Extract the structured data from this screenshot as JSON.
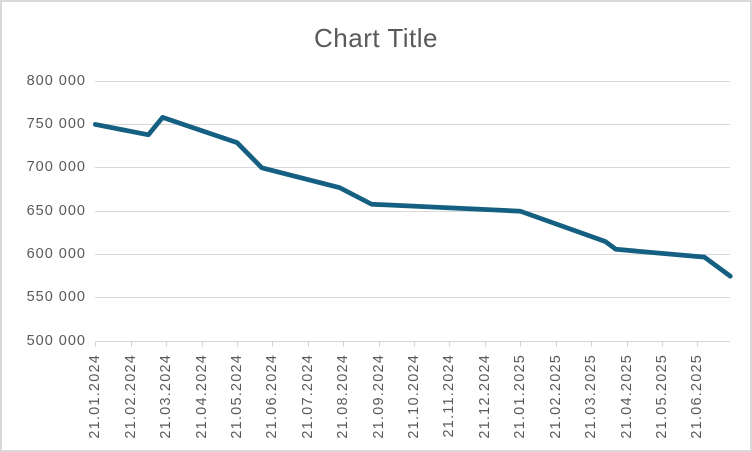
{
  "colors": {
    "line": "#156082",
    "text": "#595959",
    "grid": "#d9d9d9",
    "axis": "#d6d6d6",
    "background": "#ffffff"
  },
  "chart_data": {
    "type": "line",
    "title": "Chart Title",
    "legend": "none",
    "grid": "horizontal",
    "x_axis": {
      "tick_labels": [
        "21.01.2024",
        "21.02.2024",
        "21.03.2024",
        "21.04.2024",
        "21.05.2024",
        "21.06.2024",
        "21.07.2024",
        "21.08.2024",
        "21.09.2024",
        "21.10.2024",
        "21.11.2024",
        "21.12.2024",
        "21.01.2025",
        "21.02.2025",
        "21.03.2025",
        "21.04.2025",
        "21.05.2025",
        "21.06.2025"
      ],
      "label_rotation_deg": 90,
      "tick_interval": "1 month",
      "range_months": [
        0,
        17.93
      ]
    },
    "y_axis": {
      "min": 500000,
      "max": 800000,
      "step": 50000,
      "tick_labels": [
        "500 000",
        "550 000",
        "600 000",
        "650 000",
        "700 000",
        "750 000",
        "800 000"
      ]
    },
    "points": [
      {
        "x_months": 0.0,
        "value": 750000
      },
      {
        "x_months": 1.5,
        "value": 738000
      },
      {
        "x_months": 1.9,
        "value": 758000
      },
      {
        "x_months": 4.0,
        "value": 729000
      },
      {
        "x_months": 4.7,
        "value": 700000
      },
      {
        "x_months": 6.9,
        "value": 677000
      },
      {
        "x_months": 7.8,
        "value": 658000
      },
      {
        "x_months": 12.0,
        "value": 650000
      },
      {
        "x_months": 14.4,
        "value": 615000
      },
      {
        "x_months": 14.7,
        "value": 606000
      },
      {
        "x_months": 17.2,
        "value": 597000
      },
      {
        "x_months": 17.93,
        "value": 575000
      }
    ]
  }
}
